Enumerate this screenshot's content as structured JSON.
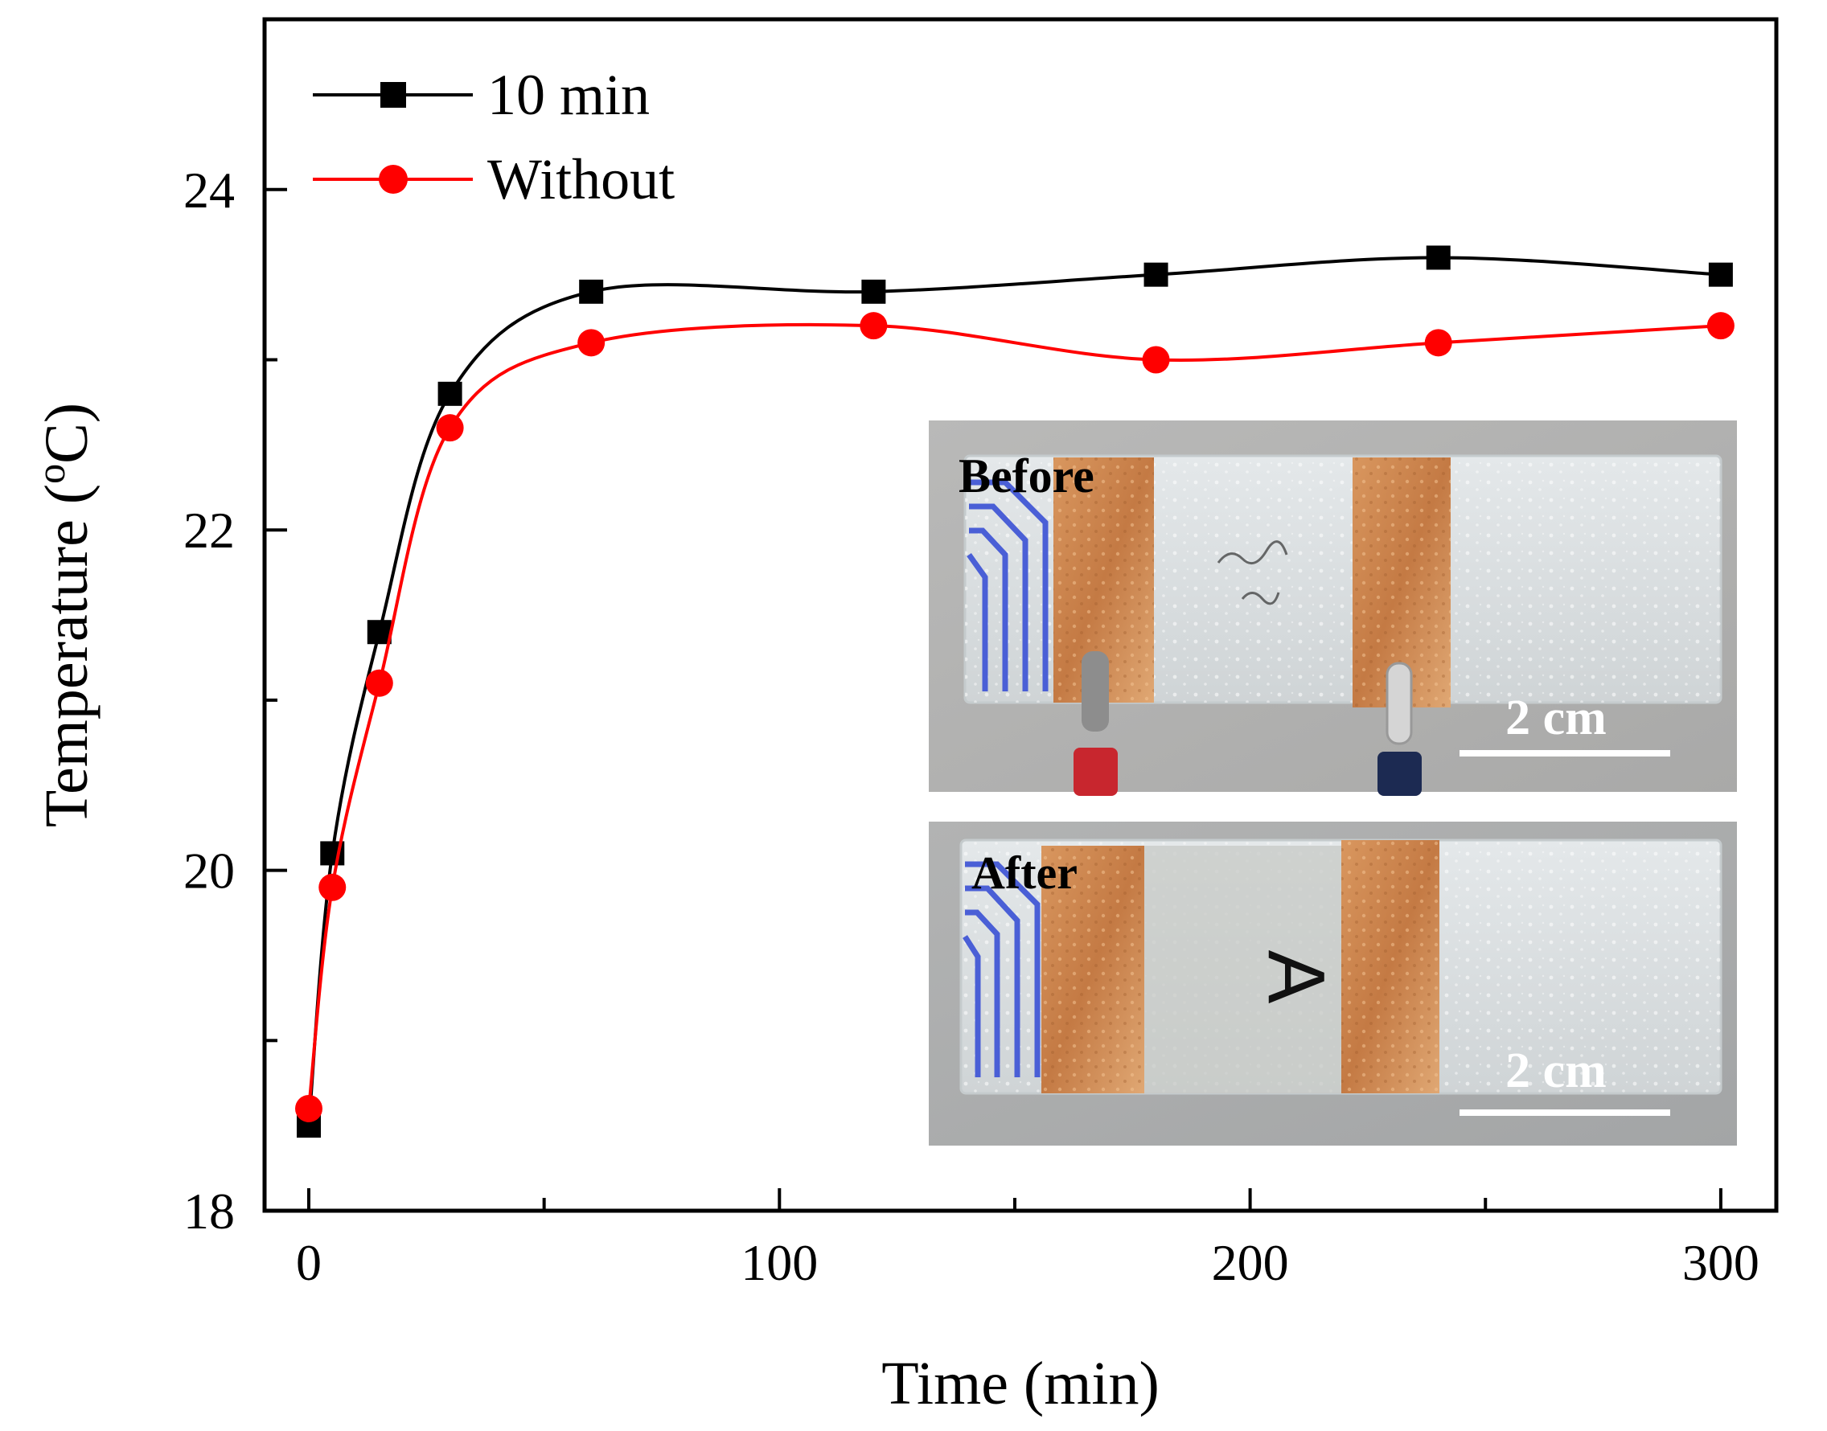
{
  "chart_data": {
    "type": "line",
    "xlabel": "Time (min)",
    "ylabel": "Temperature (°C)",
    "ylabel_parts": {
      "prefix": "Temperature (",
      "sup": "o",
      "suffix": "C)"
    },
    "xlim": [
      -5,
      315
    ],
    "ylim": [
      18,
      25
    ],
    "xticks": [
      0,
      100,
      200,
      300
    ],
    "yticks": [
      18,
      20,
      22,
      24
    ],
    "grid": false,
    "legend_position": "top-left",
    "series": [
      {
        "name": "10 min",
        "color": "#000000",
        "marker": "square",
        "x": [
          0,
          5,
          15,
          30,
          60,
          120,
          180,
          240,
          300
        ],
        "y": [
          18.5,
          20.1,
          21.4,
          22.8,
          23.4,
          23.4,
          23.5,
          23.6,
          23.5
        ]
      },
      {
        "name": "Without",
        "color": "#ff0000",
        "marker": "circle",
        "x": [
          0,
          5,
          15,
          30,
          60,
          120,
          180,
          240,
          300
        ],
        "y": [
          18.6,
          19.9,
          21.1,
          22.6,
          23.1,
          23.2,
          23.0,
          23.1,
          23.2
        ]
      }
    ],
    "insets": [
      {
        "label": "Before",
        "scale_label": "2 cm"
      },
      {
        "label": "After",
        "scale_label": "2 cm",
        "sample_mark": "A"
      }
    ]
  }
}
